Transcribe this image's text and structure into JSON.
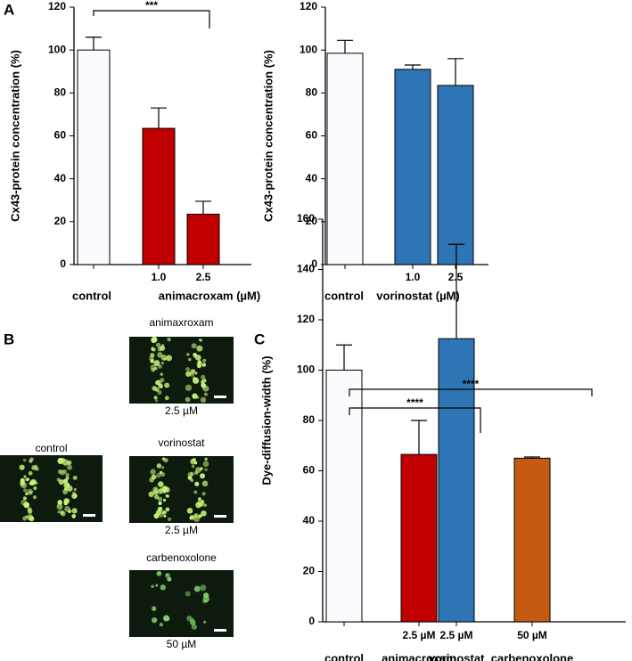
{
  "panel_labels": [
    "A",
    "B",
    "C"
  ],
  "chart_data": [
    {
      "type": "bar",
      "y_label": "Cx43-protein concentration (%)",
      "categories": [
        null,
        "1.0",
        "2.5"
      ],
      "group_labels": [
        "control",
        "animacroxam (µM)"
      ],
      "values": [
        100,
        63.5,
        23.5
      ],
      "errors": [
        6,
        9.5,
        6
      ],
      "colors": [
        "#fafbff",
        "#c00000",
        "#c00000"
      ],
      "ylim": [
        0,
        120
      ],
      "yticks": [
        0,
        20,
        40,
        60,
        80,
        100,
        120
      ],
      "annotations": [
        "***"
      ]
    },
    {
      "type": "bar",
      "y_label": "Cx43-protein concentration (%)",
      "categories": [
        null,
        "1.0",
        "2.5"
      ],
      "group_labels": [
        "control",
        "vorinostat (µM)"
      ],
      "values": [
        98.5,
        91,
        83.5
      ],
      "errors": [
        6,
        2,
        12.5
      ],
      "colors": [
        "#fafbff",
        "#2e75b6",
        "#2e75b6"
      ],
      "ylim": [
        0,
        120
      ],
      "yticks": [
        0,
        20,
        40,
        60,
        80,
        100,
        120
      ],
      "annotations": []
    },
    {
      "type": "bar",
      "y_label": "Dye-diffusion-width (%)",
      "categories": [
        null,
        "2.5 µM",
        "2.5 µM",
        "50 µM"
      ],
      "group_labels": [
        "control",
        "animacroxam",
        "vorinostat",
        "carbenoxolone"
      ],
      "values": [
        100,
        66.5,
        112.5,
        65
      ],
      "errors": [
        10,
        13.5,
        37.5,
        0.5
      ],
      "colors": [
        "#fafbff",
        "#c00000",
        "#2e75b6",
        "#c55a11"
      ],
      "ylim": [
        0,
        160
      ],
      "yticks": [
        0,
        20,
        40,
        60,
        80,
        100,
        120,
        140,
        160
      ],
      "annotations": [
        "****",
        "****"
      ]
    }
  ],
  "micrographs": [
    {
      "label": "control"
    },
    {
      "label": "animaxroxam",
      "dose": "2.5 µM"
    },
    {
      "label": "vorinostat",
      "dose": "2.5 µM"
    },
    {
      "label": "carbenoxolone",
      "dose": "50 µM"
    }
  ]
}
